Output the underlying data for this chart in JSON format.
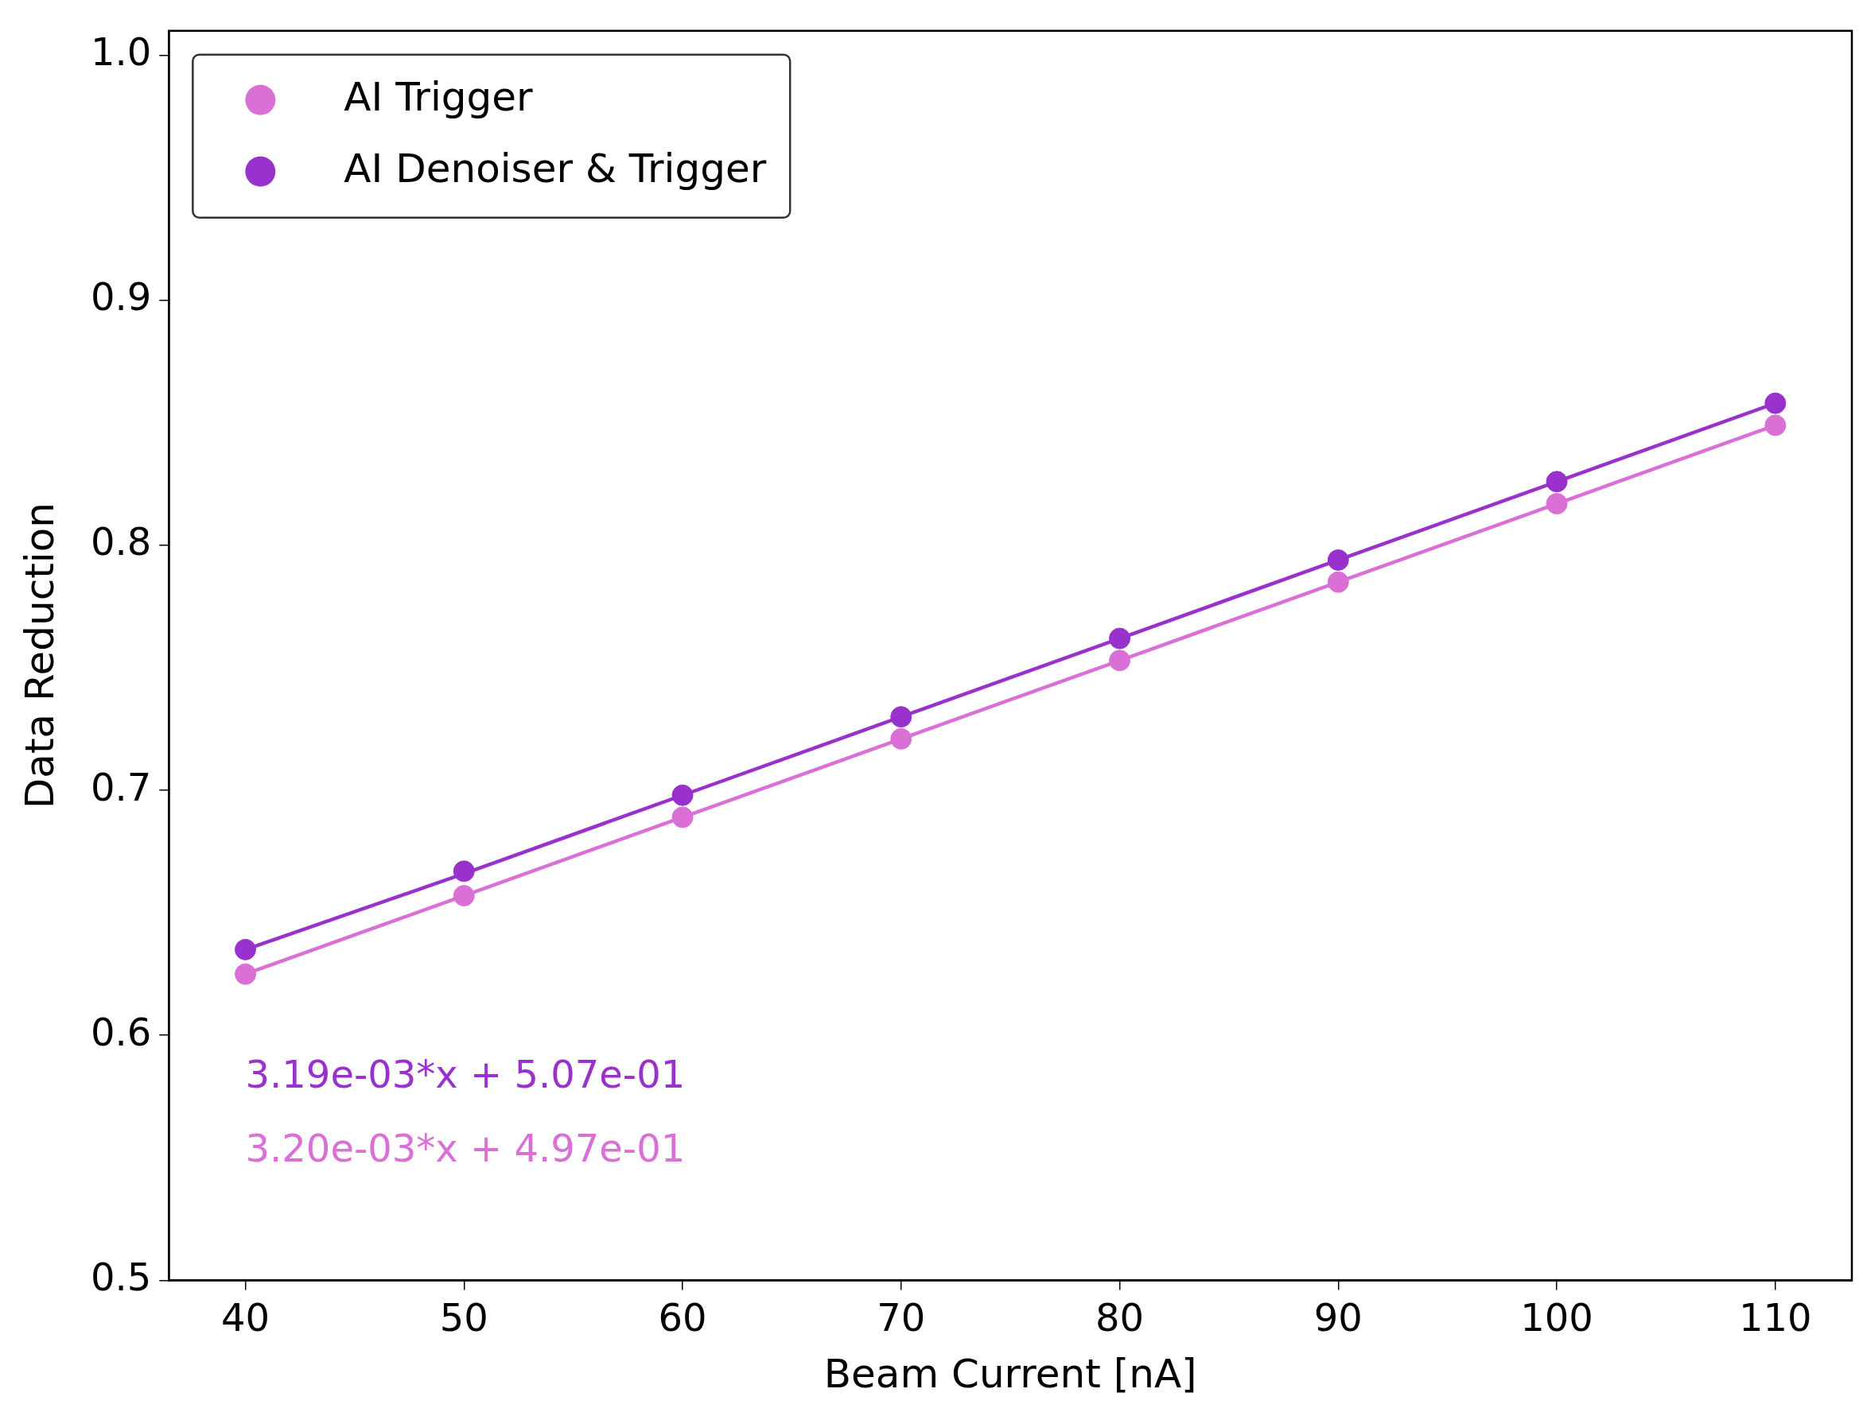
{
  "chart_data": {
    "type": "scatter",
    "xlabel": "Beam Current [nA]",
    "ylabel": "Data Reduction",
    "x": [
      40,
      50,
      60,
      70,
      80,
      90,
      100,
      110
    ],
    "series": [
      {
        "name": "AI Trigger",
        "color": "#da70d6",
        "values": [
          0.625,
          0.657,
          0.689,
          0.721,
          0.753,
          0.785,
          0.817,
          0.849
        ]
      },
      {
        "name": "AI Denoiser & Trigger",
        "color": "#9932cc",
        "values": [
          0.635,
          0.667,
          0.698,
          0.73,
          0.762,
          0.794,
          0.826,
          0.858
        ]
      },
      {
        "type": "line",
        "marker": "none",
        "color": "#9932cc",
        "values": [
          0.635,
          0.666,
          0.698,
          0.73,
          0.762,
          0.794,
          0.826,
          0.858
        ]
      },
      {
        "type": "line",
        "marker": "none",
        "color": "#da70d6",
        "values": [
          0.625,
          0.657,
          0.689,
          0.721,
          0.753,
          0.785,
          0.817,
          0.849
        ]
      }
    ],
    "annotations": [
      "3.19e-03*x + 5.07e-01",
      "3.20e-03*x + 4.97e-01"
    ],
    "xlim": [
      36.5,
      113.5
    ],
    "xticks": [
      40,
      50,
      60,
      70,
      80,
      90,
      100,
      110
    ],
    "ylim": [
      0.5,
      1.01
    ],
    "yticks": [
      {
        "value": 0.5,
        "label": "0.5"
      },
      {
        "value": 0.6,
        "label": "0.6"
      },
      {
        "value": 0.7,
        "label": "0.7"
      },
      {
        "value": 0.8,
        "label": "0.8"
      },
      {
        "value": 0.9,
        "label": "0.9"
      },
      {
        "value": 1,
        "label": "1.0"
      }
    ],
    "legend": "top left",
    "marker": "circle",
    "grid": false
  }
}
